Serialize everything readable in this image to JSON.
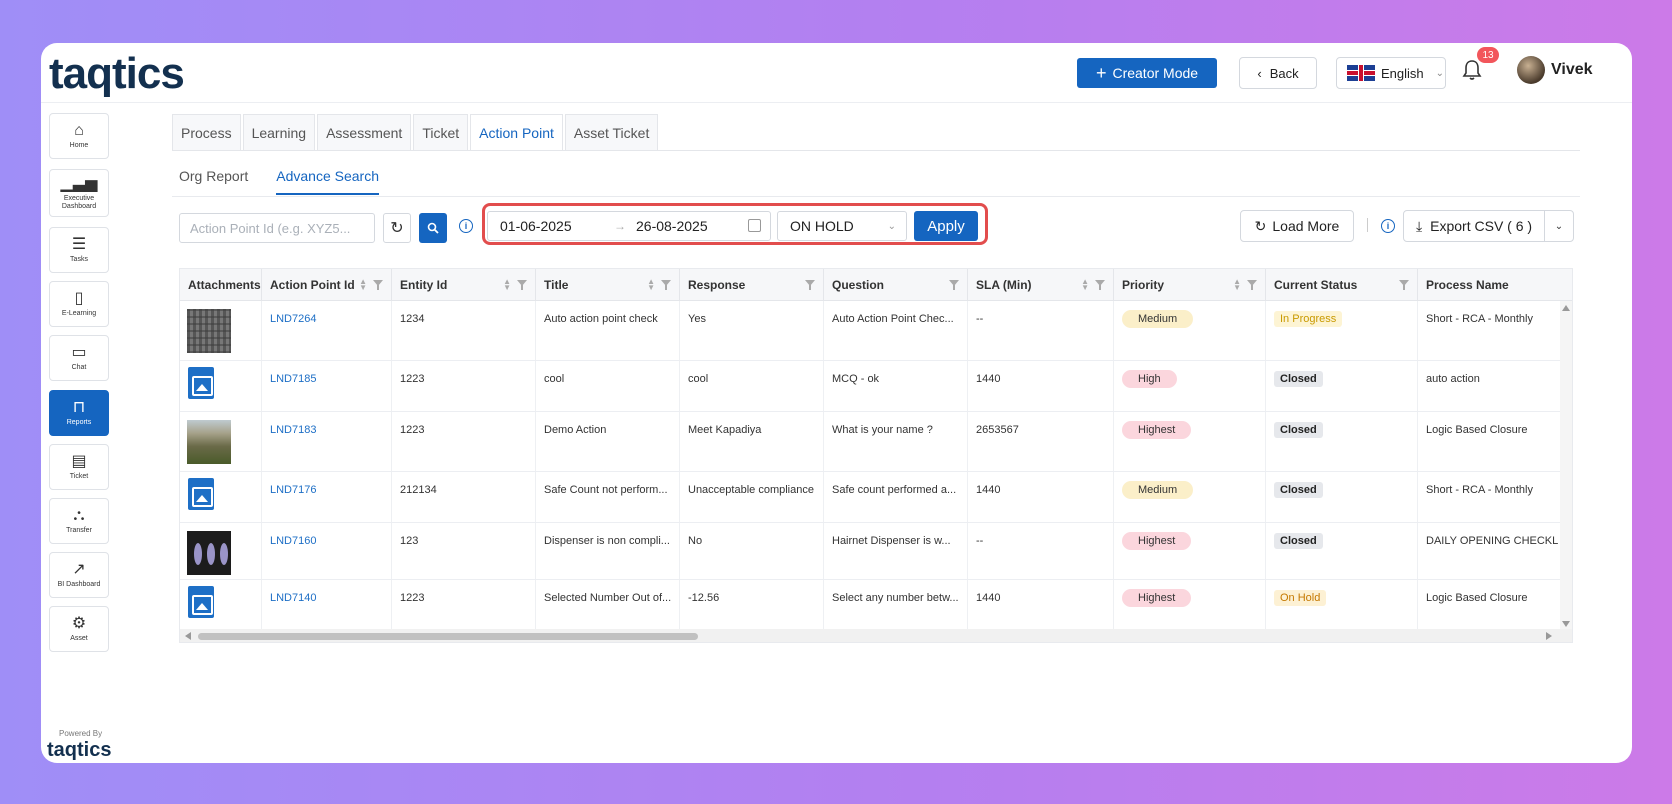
{
  "header": {
    "logo": "taqtics",
    "creator_mode_label": "Creator Mode",
    "back_label": "Back",
    "language": "English",
    "notification_count": "13",
    "user_name": "Vivek"
  },
  "sidebar": {
    "items": [
      {
        "label": "Home",
        "icon": "home-icon"
      },
      {
        "label": "Executive Dashboard",
        "icon": "bar-chart-icon"
      },
      {
        "label": "Tasks",
        "icon": "checklist-icon"
      },
      {
        "label": "E-Learning",
        "icon": "book-icon"
      },
      {
        "label": "Chat",
        "icon": "chat-icon"
      },
      {
        "label": "Reports",
        "icon": "presentation-icon"
      },
      {
        "label": "Ticket",
        "icon": "ticket-icon"
      },
      {
        "label": "Transfer",
        "icon": "transfer-icon"
      },
      {
        "label": "BI Dashboard",
        "icon": "trend-chart-icon"
      },
      {
        "label": "Asset",
        "icon": "asset-icon"
      }
    ],
    "powered_by": "Powered By",
    "footer_logo": "taqtics"
  },
  "tabs": [
    "Process",
    "Learning",
    "Assessment",
    "Ticket",
    "Action Point",
    "Asset Ticket"
  ],
  "subtabs": [
    "Org Report",
    "Advance Search"
  ],
  "filters": {
    "search_placeholder": "Action Point Id (e.g. XYZ5...",
    "date_from": "01-06-2025",
    "date_to": "26-08-2025",
    "status": "ON HOLD",
    "apply_label": "Apply",
    "load_more_label": "Load More",
    "export_label": "Export CSV ( 6 )"
  },
  "table": {
    "columns": [
      "Attachments",
      "Action Point Id",
      "Entity Id",
      "Title",
      "Response",
      "Question",
      "SLA (Min)",
      "Priority",
      "Current Status",
      "Process Name"
    ],
    "rows": [
      {
        "attachment": "keyboard-photo",
        "id": "LND7264",
        "entity": "1234",
        "title": "Auto action point check",
        "response": "Yes",
        "question": "Auto Action Point Chec...",
        "sla": "--",
        "priority": "Medium",
        "status": "In Progress",
        "process": "Short - RCA - Monthly"
      },
      {
        "attachment": "image-icon",
        "id": "LND7185",
        "entity": "1223",
        "title": "cool",
        "response": "cool",
        "question": "MCQ - ok",
        "sla": "1440",
        "priority": "High",
        "status": "Closed",
        "process": "auto action"
      },
      {
        "attachment": "mountain-photo",
        "id": "LND7183",
        "entity": "1223",
        "title": "Demo Action",
        "response": "Meet Kapadiya",
        "question": "What is your name ?",
        "sla": "2653567",
        "priority": "Highest",
        "status": "Closed",
        "process": "Logic Based Closure"
      },
      {
        "attachment": "image-icon",
        "id": "LND7176",
        "entity": "212134",
        "title": "Safe Count not perform...",
        "response": "Unacceptable compliance",
        "question": "Safe count performed a...",
        "sla": "1440",
        "priority": "Medium",
        "status": "Closed",
        "process": "Short - RCA - Monthly"
      },
      {
        "attachment": "dispenser-photo",
        "id": "LND7160",
        "entity": "123",
        "title": "Dispenser is non compli...",
        "response": "No",
        "question": "Hairnet Dispenser is w...",
        "sla": "--",
        "priority": "Highest",
        "status": "Closed",
        "process": "DAILY OPENING CHECKL"
      },
      {
        "attachment": "image-icon",
        "id": "LND7140",
        "entity": "1223",
        "title": "Selected Number Out of...",
        "response": "-12.56",
        "question": "Select any number betw...",
        "sla": "1440",
        "priority": "Highest",
        "status": "On Hold",
        "process": "Logic Based Closure"
      }
    ]
  },
  "colors": {
    "primary": "#1565c0",
    "highlight": "#e24d4d"
  }
}
